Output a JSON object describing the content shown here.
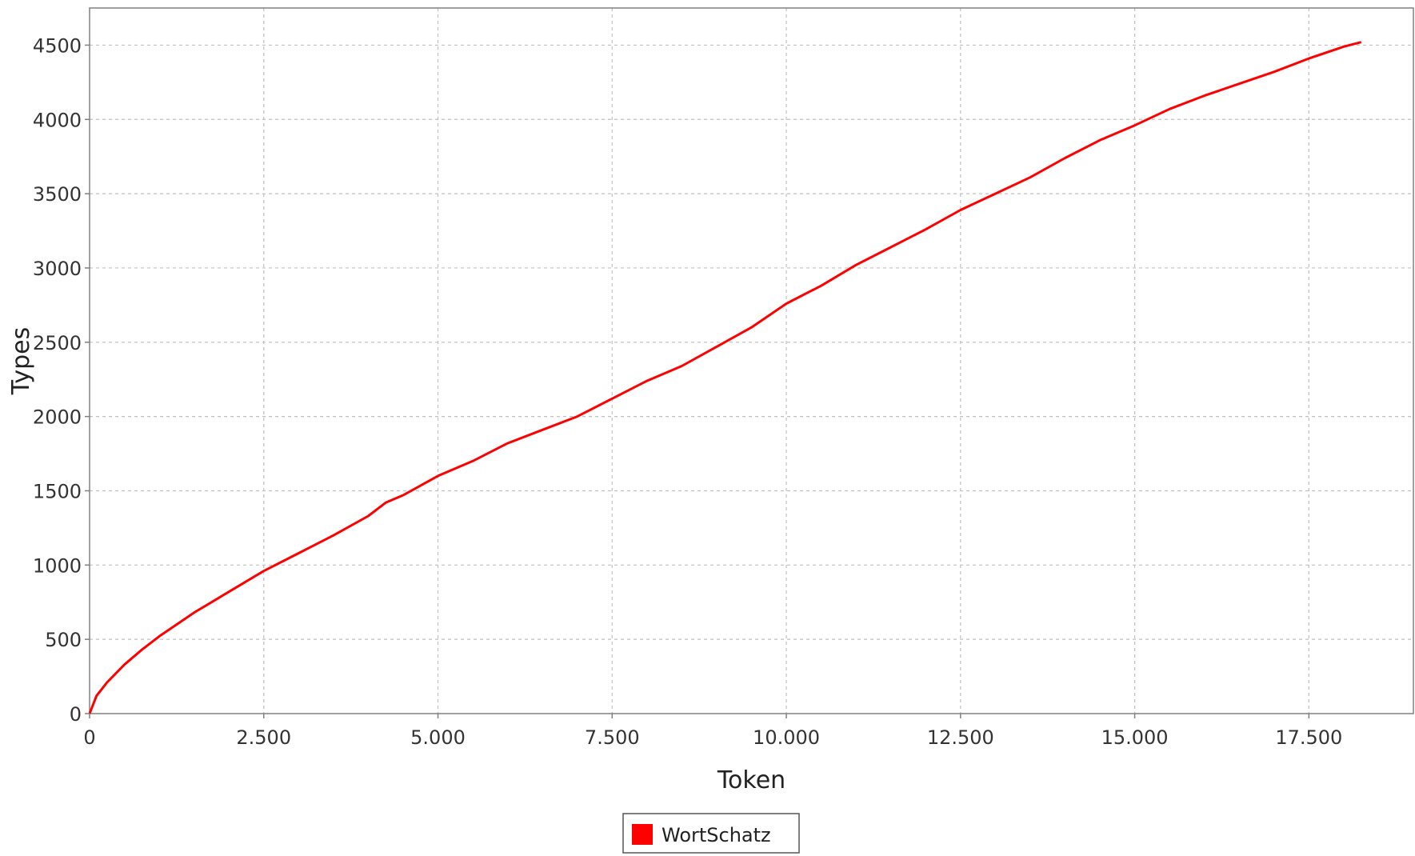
{
  "chart_data": {
    "type": "line",
    "xlabel": "Token",
    "ylabel": "Types",
    "xlim": [
      0,
      19000
    ],
    "ylim": [
      0,
      4750
    ],
    "x_ticks": [
      0,
      2500,
      5000,
      7500,
      10000,
      12500,
      15000,
      17500
    ],
    "x_tick_labels": [
      "0",
      "2.500",
      "5.000",
      "7.500",
      "10.000",
      "12.500",
      "15.000",
      "17.500"
    ],
    "y_ticks": [
      0,
      500,
      1000,
      1500,
      2000,
      2500,
      3000,
      3500,
      4000,
      4500
    ],
    "y_tick_labels": [
      "0",
      "500",
      "1000",
      "1500",
      "2000",
      "2500",
      "3000",
      "3500",
      "4000",
      "4500"
    ],
    "grid": true,
    "legend_position": "bottom-center",
    "series": [
      {
        "name": "WortSchatz",
        "color": "#ff0000",
        "x": [
          0,
          100,
          250,
          500,
          750,
          1000,
          1500,
          2000,
          2500,
          3000,
          3500,
          4000,
          4250,
          4500,
          5000,
          5500,
          6000,
          6500,
          7000,
          7500,
          8000,
          8500,
          9000,
          9500,
          10000,
          10500,
          11000,
          11500,
          12000,
          12500,
          13000,
          13500,
          14000,
          14500,
          15000,
          15500,
          16000,
          16500,
          17000,
          17500,
          18000,
          18250
        ],
        "values": [
          0,
          120,
          210,
          330,
          430,
          520,
          680,
          820,
          960,
          1080,
          1200,
          1330,
          1420,
          1470,
          1600,
          1700,
          1820,
          1910,
          2000,
          2120,
          2240,
          2340,
          2470,
          2600,
          2760,
          2880,
          3020,
          3140,
          3260,
          3390,
          3500,
          3610,
          3740,
          3860,
          3960,
          4070,
          4160,
          4240,
          4320,
          4410,
          4490,
          4520
        ]
      }
    ]
  }
}
